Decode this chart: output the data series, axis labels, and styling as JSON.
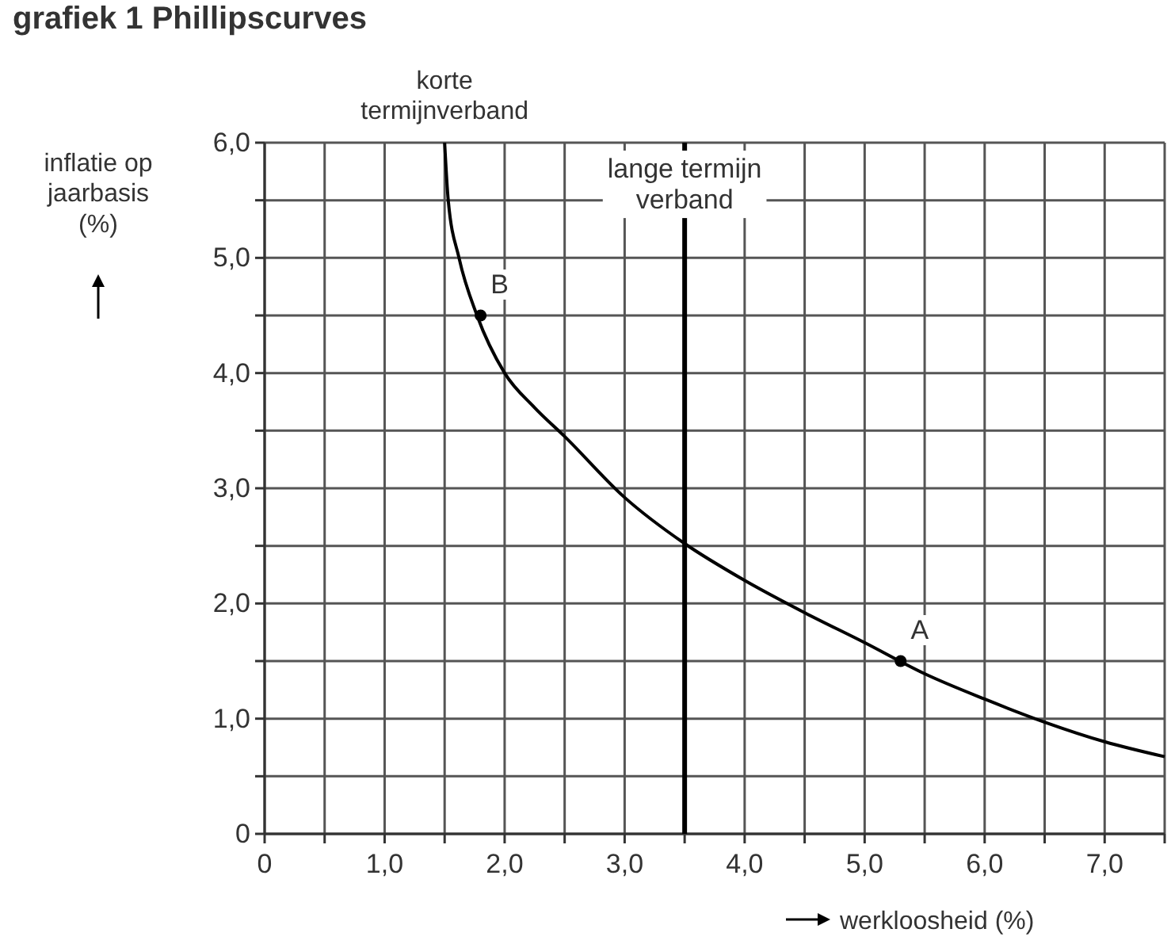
{
  "chart_data": {
    "type": "line",
    "title": "grafiek 1 Phillipscurves",
    "xlabel": "werkloosheid (%)",
    "ylabel": "inflatie op jaarbasis (%)",
    "xlim": [
      0,
      7.5
    ],
    "ylim": [
      0,
      6
    ],
    "xticks": [
      {
        "value": 0,
        "label": "0"
      },
      {
        "value": 0.5,
        "label": null
      },
      {
        "value": 1,
        "label": "1,0"
      },
      {
        "value": 1.5,
        "label": null
      },
      {
        "value": 2,
        "label": "2,0"
      },
      {
        "value": 2.5,
        "label": null
      },
      {
        "value": 3,
        "label": "3,0"
      },
      {
        "value": 3.5,
        "label": null
      },
      {
        "value": 4,
        "label": "4,0"
      },
      {
        "value": 4.5,
        "label": null
      },
      {
        "value": 5,
        "label": "5,0"
      },
      {
        "value": 5.5,
        "label": null
      },
      {
        "value": 6,
        "label": "6,0"
      },
      {
        "value": 6.5,
        "label": null
      },
      {
        "value": 7,
        "label": "7,0"
      },
      {
        "value": 7.5,
        "label": null
      }
    ],
    "yticks": [
      {
        "value": 0,
        "label": "0"
      },
      {
        "value": 0.5,
        "label": null
      },
      {
        "value": 1,
        "label": "1,0"
      },
      {
        "value": 1.5,
        "label": null
      },
      {
        "value": 2,
        "label": "2,0"
      },
      {
        "value": 2.5,
        "label": null
      },
      {
        "value": 3,
        "label": "3,0"
      },
      {
        "value": 3.5,
        "label": null
      },
      {
        "value": 4,
        "label": "4,0"
      },
      {
        "value": 4.5,
        "label": null
      },
      {
        "value": 5,
        "label": "5,0"
      },
      {
        "value": 5.5,
        "label": null
      },
      {
        "value": 6,
        "label": "6,0"
      }
    ],
    "grid": true,
    "series": [
      {
        "color": "#000000",
        "marker": "none",
        "line_style": "solid",
        "x": [
          1.5,
          1.53,
          1.62,
          1.77,
          2.0,
          2.25,
          2.5,
          3.0,
          3.5,
          4.0,
          4.5,
          5.0,
          5.5,
          6.0,
          6.5,
          7.0,
          7.5
        ],
        "values": [
          6.0,
          5.5,
          5.0,
          4.5,
          4.0,
          3.7,
          3.45,
          2.92,
          2.52,
          2.2,
          1.92,
          1.66,
          1.39,
          1.17,
          0.97,
          0.8,
          0.67
        ]
      },
      {
        "type": "scatter",
        "color": "#000000",
        "marker": "circle",
        "x": [
          1.8,
          5.3
        ],
        "values": [
          4.5,
          1.5
        ]
      }
    ],
    "ref_lines": [
      {
        "axis": "x",
        "value": 3.5,
        "label": "lange termijn verband",
        "color": "#000000"
      }
    ],
    "annotations": [
      {
        "text": "korte termijnverband",
        "x": 1.5,
        "y": 6
      },
      {
        "text": "B",
        "x": 1.8,
        "y": 4.5
      },
      {
        "text": "A",
        "x": 5.3,
        "y": 1.5
      }
    ]
  }
}
